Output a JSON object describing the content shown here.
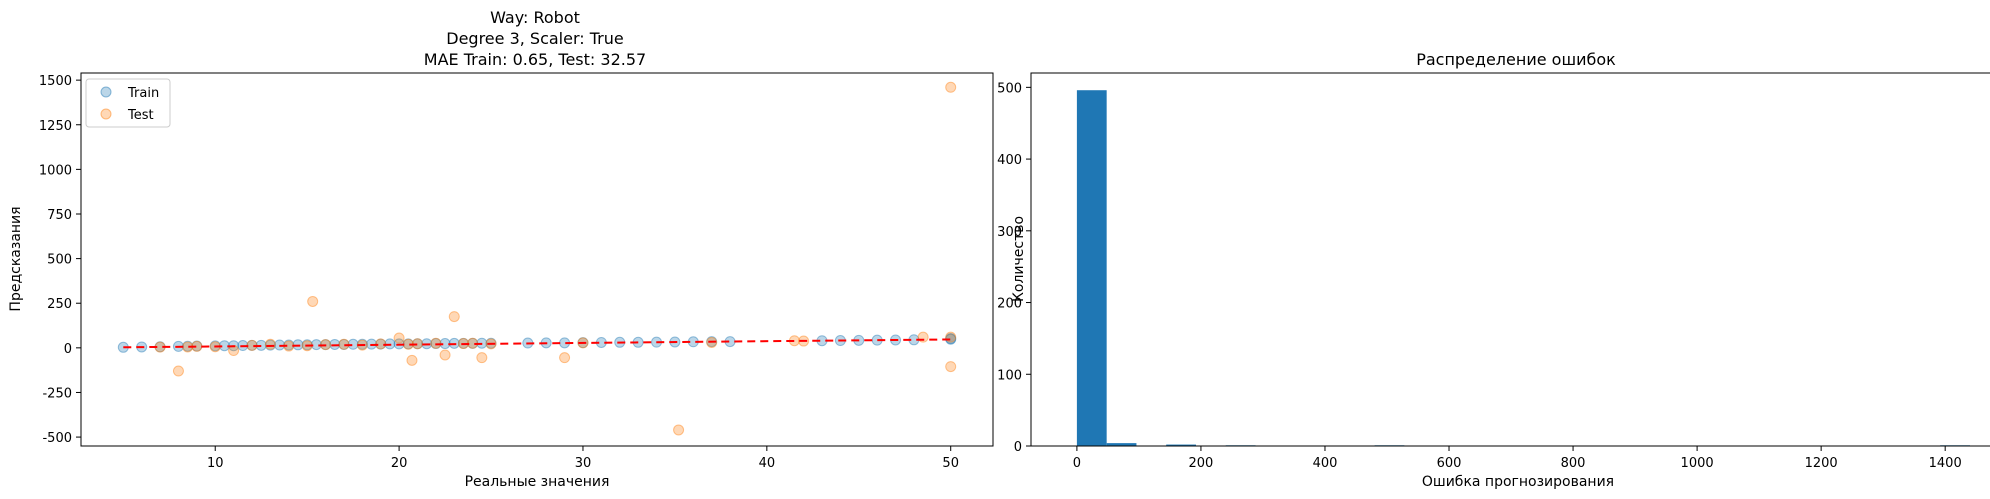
{
  "chart_data": [
    {
      "type": "scatter",
      "title_lines": [
        "Way: Robot",
        "Degree 3, Scaler: True",
        "MAE Train: 0.65, Test: 32.57"
      ],
      "xlabel": "Реальные значения",
      "ylabel": "Предсказания",
      "xlim": [
        2.7,
        52.3
      ],
      "ylim": [
        -550,
        1540
      ],
      "xticks": [
        10,
        20,
        30,
        40,
        50
      ],
      "yticks": [
        -500,
        -250,
        0,
        250,
        500,
        750,
        1000,
        1250,
        1500
      ],
      "grid": false,
      "legend_position": "upper-left",
      "series": [
        {
          "name": "Train",
          "color": "#1f77b4",
          "points": [
            [
              5,
              3
            ],
            [
              6,
              5
            ],
            [
              7,
              6
            ],
            [
              8,
              8
            ],
            [
              8.5,
              9
            ],
            [
              9,
              10
            ],
            [
              10,
              11
            ],
            [
              10.5,
              12
            ],
            [
              11,
              12
            ],
            [
              11.5,
              13
            ],
            [
              12,
              14
            ],
            [
              12.5,
              14
            ],
            [
              13,
              15
            ],
            [
              13.5,
              16
            ],
            [
              14,
              16
            ],
            [
              14.5,
              17
            ],
            [
              15,
              17
            ],
            [
              15.5,
              18
            ],
            [
              16,
              18
            ],
            [
              16.5,
              19
            ],
            [
              17,
              19
            ],
            [
              17.5,
              20
            ],
            [
              18,
              20
            ],
            [
              18.5,
              21
            ],
            [
              19,
              21
            ],
            [
              19.5,
              22
            ],
            [
              20,
              22
            ],
            [
              20.5,
              22
            ],
            [
              21,
              23
            ],
            [
              21.5,
              23
            ],
            [
              22,
              24
            ],
            [
              22.5,
              24
            ],
            [
              23,
              25
            ],
            [
              23.5,
              25
            ],
            [
              24,
              25
            ],
            [
              24.5,
              26
            ],
            [
              25,
              26
            ],
            [
              27,
              27
            ],
            [
              28,
              28
            ],
            [
              29,
              28
            ],
            [
              30,
              29
            ],
            [
              31,
              30
            ],
            [
              32,
              31
            ],
            [
              33,
              31
            ],
            [
              34,
              32
            ],
            [
              35,
              33
            ],
            [
              36,
              34
            ],
            [
              37,
              35
            ],
            [
              38,
              35
            ],
            [
              43,
              40
            ],
            [
              44,
              41
            ],
            [
              45,
              42
            ],
            [
              46,
              43
            ],
            [
              47,
              44
            ],
            [
              48,
              45
            ],
            [
              50,
              48
            ],
            [
              50,
              52
            ]
          ]
        },
        {
          "name": "Test",
          "color": "#ff7f0e",
          "points": [
            [
              7,
              4
            ],
            [
              8,
              -130
            ],
            [
              8.5,
              5
            ],
            [
              9,
              8
            ],
            [
              10,
              6
            ],
            [
              11,
              -15
            ],
            [
              12,
              14
            ],
            [
              13,
              20
            ],
            [
              14,
              10
            ],
            [
              15,
              12
            ],
            [
              15.3,
              260
            ],
            [
              16,
              18
            ],
            [
              17,
              20
            ],
            [
              18,
              15
            ],
            [
              19,
              22
            ],
            [
              20,
              55
            ],
            [
              20.5,
              20
            ],
            [
              20.7,
              -70
            ],
            [
              21,
              23
            ],
            [
              22,
              26
            ],
            [
              22.5,
              -40
            ],
            [
              23,
              175
            ],
            [
              23.5,
              24
            ],
            [
              24,
              26
            ],
            [
              24.5,
              -55
            ],
            [
              25,
              22
            ],
            [
              29,
              -55
            ],
            [
              30,
              28
            ],
            [
              35.2,
              -460
            ],
            [
              37,
              30
            ],
            [
              41.5,
              40
            ],
            [
              42,
              38
            ],
            [
              48.5,
              60
            ],
            [
              50,
              1460
            ],
            [
              50,
              -105
            ],
            [
              50,
              60
            ]
          ]
        }
      ],
      "fit_line": {
        "x": [
          5,
          50
        ],
        "y": [
          3,
          47
        ],
        "color": "#ff0000"
      }
    },
    {
      "type": "bar",
      "title": "Распределение ошибок",
      "xlabel": "Ошибка прогнозирования",
      "ylabel": "Количество",
      "xlim": [
        -74,
        1490
      ],
      "ylim": [
        0,
        520
      ],
      "xticks": [
        0,
        200,
        400,
        600,
        800,
        1000,
        1200,
        1400
      ],
      "yticks": [
        0,
        100,
        200,
        300,
        400,
        500
      ],
      "grid": false,
      "bin_width": 48,
      "color": "#1f77b4",
      "bins": [
        {
          "start": 0,
          "count": 496
        },
        {
          "start": 48,
          "count": 4
        },
        {
          "start": 144,
          "count": 2
        },
        {
          "start": 240,
          "count": 1
        },
        {
          "start": 480,
          "count": 1
        },
        {
          "start": 1392,
          "count": 1
        }
      ]
    }
  ]
}
